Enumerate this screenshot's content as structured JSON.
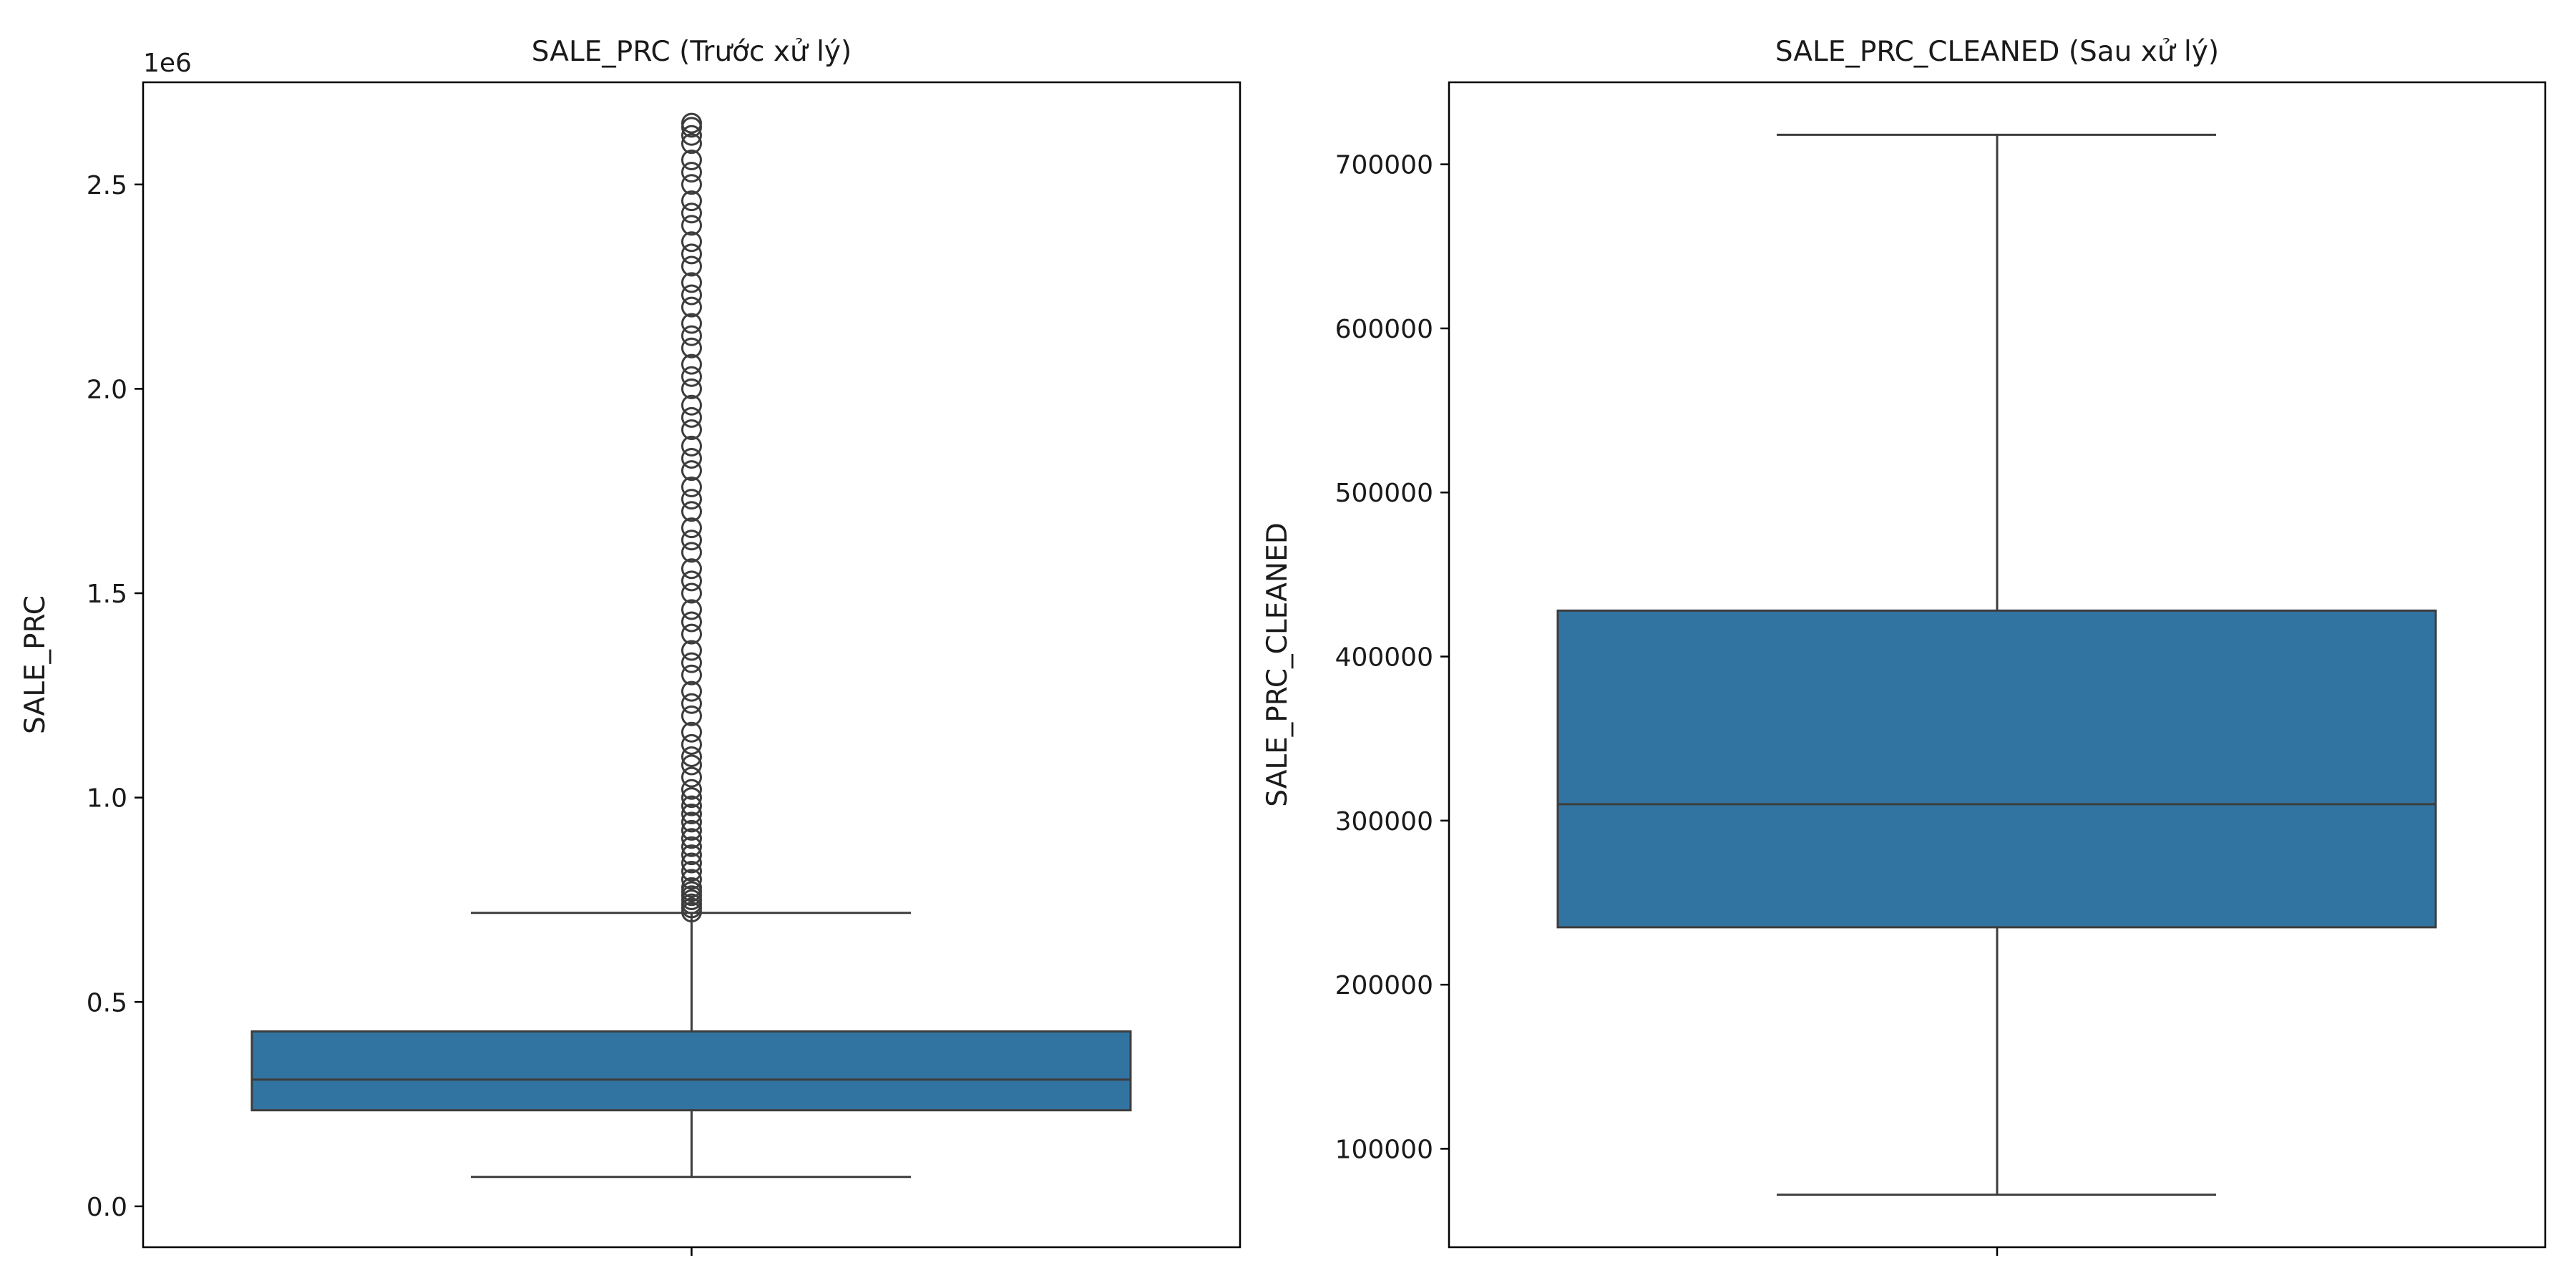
{
  "chart_data": [
    {
      "type": "box",
      "title": "SALE_PRC (Trước xử lý)",
      "xlabel": "",
      "ylabel": "SALE_PRC",
      "y_offset_label": "1e6",
      "ylim": [
        -0.1,
        2.75
      ],
      "y_ticks": [
        0.0,
        0.5,
        1.0,
        1.5,
        2.0,
        2.5
      ],
      "y_tick_labels": [
        "0.0",
        "0.5",
        "1.0",
        "1.5",
        "2.0",
        "2.5"
      ],
      "box": {
        "whisker_low": 0.072,
        "q1": 0.235,
        "median": 0.31,
        "q3": 0.428,
        "whisker_high": 0.718
      },
      "outliers": [
        0.72,
        0.73,
        0.74,
        0.75,
        0.76,
        0.77,
        0.78,
        0.8,
        0.82,
        0.84,
        0.86,
        0.88,
        0.9,
        0.92,
        0.94,
        0.96,
        0.98,
        1.0,
        1.02,
        1.05,
        1.08,
        1.1,
        1.13,
        1.16,
        1.2,
        1.23,
        1.26,
        1.3,
        1.33,
        1.36,
        1.4,
        1.43,
        1.46,
        1.5,
        1.53,
        1.56,
        1.6,
        1.63,
        1.66,
        1.7,
        1.73,
        1.76,
        1.8,
        1.83,
        1.86,
        1.9,
        1.93,
        1.96,
        2.0,
        2.03,
        2.06,
        2.1,
        2.13,
        2.16,
        2.2,
        2.23,
        2.26,
        2.3,
        2.33,
        2.36,
        2.4,
        2.43,
        2.46,
        2.5,
        2.53,
        2.56,
        2.6,
        2.62,
        2.64,
        2.65
      ],
      "color": "#3274a1",
      "grid": false
    },
    {
      "type": "box",
      "title": "SALE_PRC_CLEANED (Sau xử lý)",
      "xlabel": "",
      "ylabel": "SALE_PRC_CLEANED",
      "ylim": [
        40000,
        750000
      ],
      "y_ticks": [
        100000,
        200000,
        300000,
        400000,
        500000,
        600000,
        700000
      ],
      "y_tick_labels": [
        "100000",
        "200000",
        "300000",
        "400000",
        "500000",
        "600000",
        "700000"
      ],
      "box": {
        "whisker_low": 72000,
        "q1": 235000,
        "median": 310000,
        "q3": 428000,
        "whisker_high": 718000
      },
      "outliers": [],
      "color": "#3274a1",
      "grid": false
    }
  ]
}
